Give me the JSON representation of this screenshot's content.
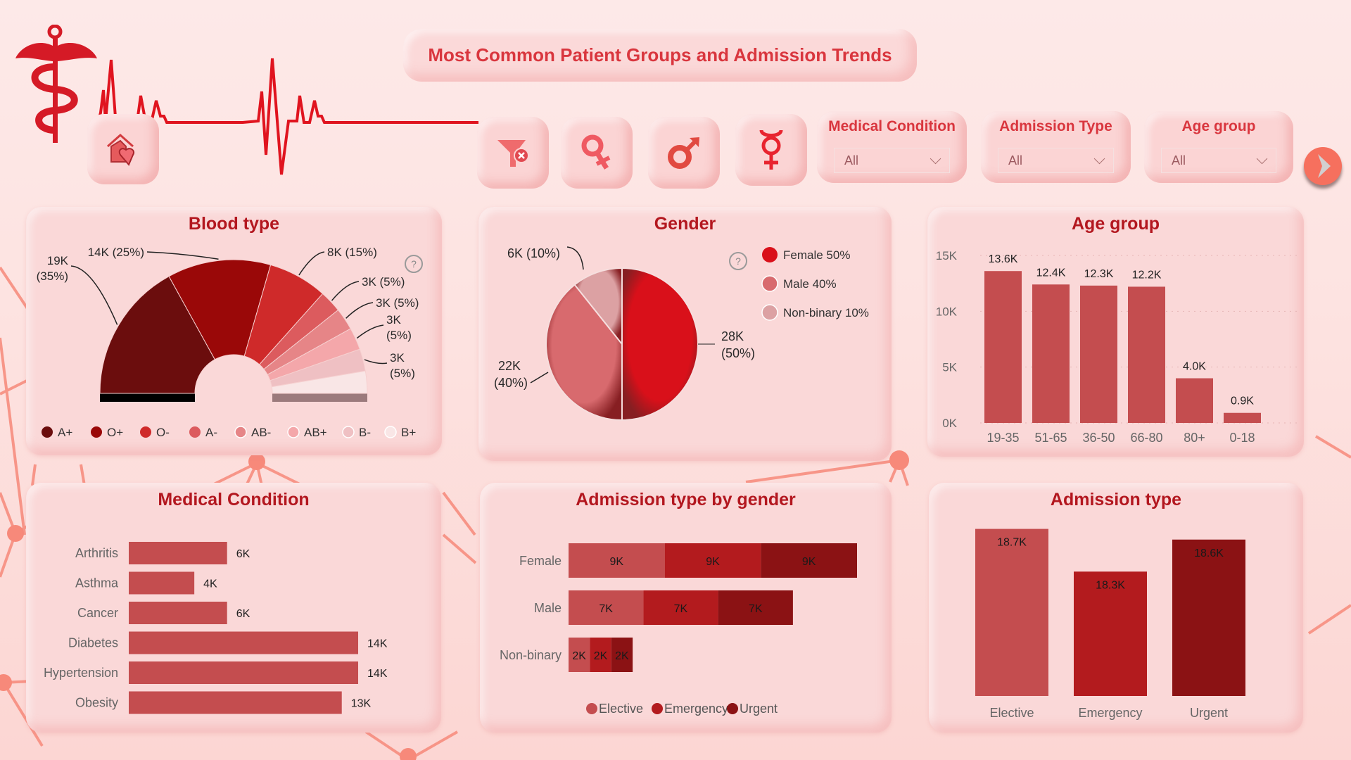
{
  "header": {
    "title": "Most Common Patient Groups and Admission Trends",
    "logo_icon": "caduceus-icon",
    "home_icon": "home-heart-icon",
    "next_icon": "chevron-right-icon"
  },
  "toolbar": {
    "buttons": [
      {
        "name": "clear-filter-button",
        "icon": "filter-clear-icon"
      },
      {
        "name": "female-filter-button",
        "icon": "female-symbol-icon"
      },
      {
        "name": "male-filter-button",
        "icon": "male-symbol-icon"
      },
      {
        "name": "nonbinary-filter-button",
        "icon": "nonbinary-symbol-icon"
      }
    ]
  },
  "slicers": [
    {
      "label": "Medical Condition",
      "value": "All"
    },
    {
      "label": "Admission Type",
      "value": "All"
    },
    {
      "label": "Age group",
      "value": "All"
    }
  ],
  "colors": {
    "accent": "#d9363e",
    "title": "#b3171f",
    "bar": "#c44d4f",
    "elective": "#c44d4f",
    "emergency": "#b31b1e",
    "urgent": "#8b1214"
  },
  "chart_data": [
    {
      "id": "blood_type",
      "type": "pie",
      "variant": "half-donut",
      "title": "Blood type",
      "legend_position": "bottom",
      "categories": [
        "A+",
        "O+",
        "O-",
        "A-",
        "AB-",
        "AB+",
        "B-",
        "B+"
      ],
      "values": [
        19,
        14,
        8,
        3,
        3,
        3,
        3,
        3
      ],
      "unit": "K",
      "labels": [
        "19K (35%)",
        "14K (25%)",
        "8K (15%)",
        "3K (5%)",
        "3K (5%)",
        "3K (5%)",
        "3K (5%)",
        ""
      ],
      "colors": [
        "#6b0d0d",
        "#9a0808",
        "#cf2a2a",
        "#dc5b5e",
        "#e68587",
        "#f4a7aa",
        "#efc0c3",
        "#f9e6e6"
      ]
    },
    {
      "id": "gender",
      "type": "pie",
      "title": "Gender",
      "legend_position": "right",
      "categories": [
        "Female",
        "Male",
        "Non-binary"
      ],
      "values": [
        28,
        22,
        6
      ],
      "percent": [
        50,
        40,
        10
      ],
      "unit": "K",
      "labels": [
        "28K (50%)",
        "22K (40%)",
        "6K (10%)"
      ],
      "legend": [
        "Female 50%",
        "Male 40%",
        "Non-binary 10%"
      ],
      "colors": [
        "#d9101a",
        "#d86a6e",
        "#dca1a3"
      ]
    },
    {
      "id": "age_group",
      "type": "bar",
      "title": "Age group",
      "categories": [
        "19-35",
        "51-65",
        "36-50",
        "66-80",
        "80+",
        "0-18"
      ],
      "values": [
        13.6,
        12.4,
        12.3,
        12.2,
        4.0,
        0.9
      ],
      "labels": [
        "13.6K",
        "12.4K",
        "12.3K",
        "12.2K",
        "4.0K",
        "0.9K"
      ],
      "yticks": [
        "0K",
        "5K",
        "10K",
        "15K"
      ],
      "ylim": [
        0,
        15
      ],
      "grid": true
    },
    {
      "id": "medical_condition",
      "type": "bar",
      "orientation": "horizontal",
      "title": "Medical Condition",
      "categories": [
        "Arthritis",
        "Asthma",
        "Cancer",
        "Diabetes",
        "Hypertension",
        "Obesity"
      ],
      "values": [
        6,
        4,
        6,
        14,
        14,
        13
      ],
      "labels": [
        "6K",
        "4K",
        "6K",
        "14K",
        "14K",
        "13K"
      ]
    },
    {
      "id": "admission_by_gender",
      "type": "bar",
      "orientation": "horizontal",
      "stacked": true,
      "title": "Admission type by gender",
      "categories": [
        "Female",
        "Male",
        "Non-binary"
      ],
      "series": [
        {
          "name": "Elective",
          "values": [
            9,
            7,
            2
          ],
          "labels": [
            "9K",
            "7K",
            "2K"
          ]
        },
        {
          "name": "Emergency",
          "values": [
            9,
            7,
            2
          ],
          "labels": [
            "9K",
            "7K",
            "2K"
          ]
        },
        {
          "name": "Urgent",
          "values": [
            9,
            7,
            2
          ],
          "labels": [
            "9K",
            "7K",
            "2K"
          ]
        }
      ],
      "legend_position": "bottom"
    },
    {
      "id": "admission_type",
      "type": "bar",
      "title": "Admission type",
      "categories": [
        "Elective",
        "Emergency",
        "Urgent"
      ],
      "values": [
        18.7,
        18.3,
        18.6
      ],
      "labels": [
        "18.7K",
        "18.3K",
        "18.6K"
      ]
    }
  ]
}
